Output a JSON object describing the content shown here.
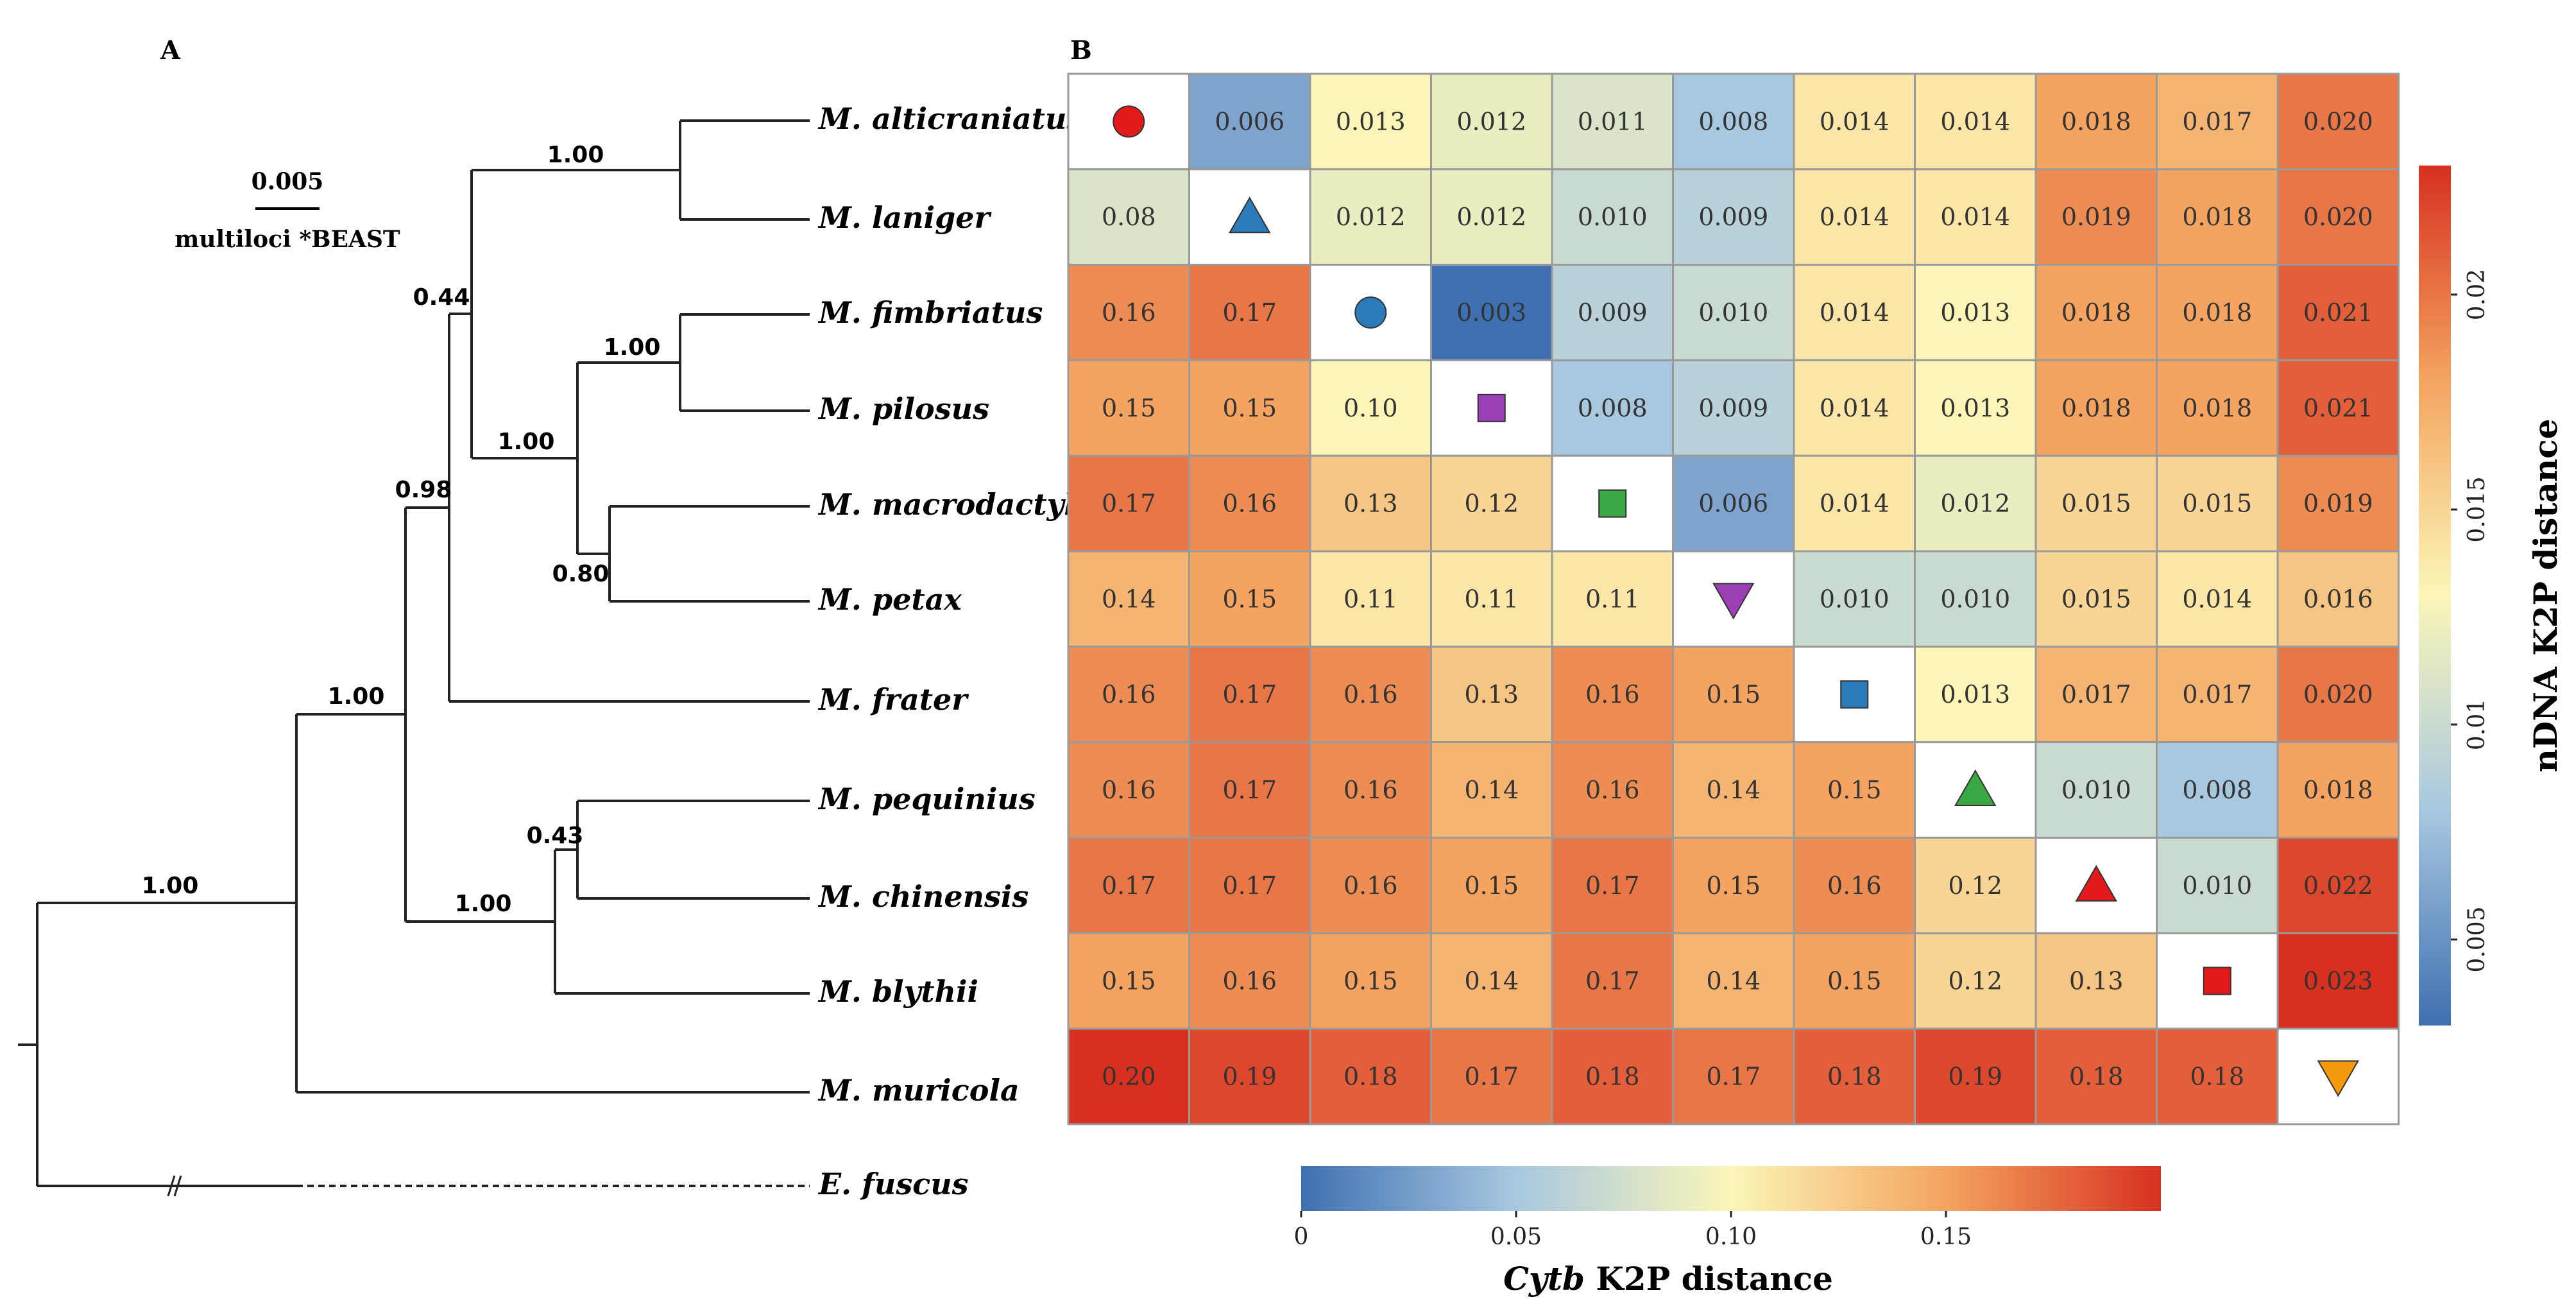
{
  "colors": {
    "low": "#3e6fb0",
    "mid_low": "#a8c8e0",
    "mid": "#fbf6b8",
    "mid_high": "#f4a460",
    "high": "#d7301f",
    "marker_red": "#e31a1c",
    "marker_blue": "#2b7bba",
    "marker_purple": "#9b3fb5",
    "marker_green": "#3aa843",
    "marker_orange": "#f59a0c"
  },
  "panel_a": {
    "label": "A",
    "scale_value": "0.005",
    "scale_label": "multiloci *BEAST",
    "taxa": [
      "M. alticraniatus",
      "M. laniger",
      "M. fimbriatus",
      "M. pilosus",
      "M. macrodactylus",
      "M. petax",
      "M. frater",
      "M. pequinius",
      "M. chinensis",
      "M. blythii",
      "M. muricola",
      "E. fuscus"
    ],
    "support_values": [
      "1.00",
      "0.44",
      "1.00",
      "1.00",
      "0.98",
      "0.80",
      "1.00",
      "0.43",
      "1.00",
      "1.00"
    ]
  },
  "chart_data": {
    "type": "heatmap",
    "panel_label": "B",
    "rows": [
      "M. alticraniatus",
      "M. laniger",
      "M. fimbriatus",
      "M. pilosus",
      "M. macrodactylus",
      "M. petax",
      "M. frater",
      "M. pequinius",
      "M. chinensis",
      "M. blythii",
      "M. muricola"
    ],
    "cells": [
      [
        null,
        "0.006",
        "0.013",
        "0.012",
        "0.011",
        "0.008",
        "0.014",
        "0.014",
        "0.018",
        "0.017",
        "0.020"
      ],
      [
        "0.08",
        null,
        "0.012",
        "0.012",
        "0.010",
        "0.009",
        "0.014",
        "0.014",
        "0.019",
        "0.018",
        "0.020"
      ],
      [
        "0.16",
        "0.17",
        null,
        "0.003",
        "0.009",
        "0.010",
        "0.014",
        "0.013",
        "0.018",
        "0.018",
        "0.021"
      ],
      [
        "0.15",
        "0.15",
        "0.10",
        null,
        "0.008",
        "0.009",
        "0.014",
        "0.013",
        "0.018",
        "0.018",
        "0.021"
      ],
      [
        "0.17",
        "0.16",
        "0.13",
        "0.12",
        null,
        "0.006",
        "0.014",
        "0.012",
        "0.015",
        "0.015",
        "0.019"
      ],
      [
        "0.14",
        "0.15",
        "0.11",
        "0.11",
        "0.11",
        null,
        "0.010",
        "0.010",
        "0.015",
        "0.014",
        "0.016"
      ],
      [
        "0.16",
        "0.17",
        "0.16",
        "0.13",
        "0.16",
        "0.15",
        null,
        "0.013",
        "0.017",
        "0.017",
        "0.020"
      ],
      [
        "0.16",
        "0.17",
        "0.16",
        "0.14",
        "0.16",
        "0.14",
        "0.15",
        null,
        "0.010",
        "0.008",
        "0.018"
      ],
      [
        "0.17",
        "0.17",
        "0.16",
        "0.15",
        "0.17",
        "0.15",
        "0.16",
        "0.12",
        null,
        "0.010",
        "0.022"
      ],
      [
        "0.15",
        "0.16",
        "0.15",
        "0.14",
        "0.17",
        "0.14",
        "0.15",
        "0.12",
        "0.13",
        null,
        "0.023"
      ],
      [
        "0.20",
        "0.19",
        "0.18",
        "0.17",
        "0.18",
        "0.17",
        "0.18",
        "0.19",
        "0.18",
        "0.18",
        null
      ]
    ],
    "diagonal_markers": [
      {
        "shape": "circle",
        "color": "#e31a1c"
      },
      {
        "shape": "triangle-up",
        "color": "#2b7bba"
      },
      {
        "shape": "circle",
        "color": "#2b7bba"
      },
      {
        "shape": "square",
        "color": "#9b3fb5"
      },
      {
        "shape": "square",
        "color": "#3aa843"
      },
      {
        "shape": "triangle-down",
        "color": "#9b3fb5"
      },
      {
        "shape": "square",
        "color": "#2b7bba"
      },
      {
        "shape": "triangle-up",
        "color": "#3aa843"
      },
      {
        "shape": "triangle-up",
        "color": "#e31a1c"
      },
      {
        "shape": "square",
        "color": "#e31a1c"
      },
      {
        "shape": "triangle-down",
        "color": "#f59a0c"
      }
    ],
    "upper_scale": {
      "title": "nDNA K2P distance",
      "min": 0.003,
      "max": 0.023,
      "ticks": [
        "0.005",
        "0.01",
        "0.015",
        "0.02"
      ]
    },
    "lower_scale": {
      "title_italic": "Cytb",
      "title_rest": " K2P distance",
      "min": 0,
      "max": 0.2,
      "ticks": [
        "0",
        "0.05",
        "0.10",
        "0.15"
      ]
    }
  }
}
